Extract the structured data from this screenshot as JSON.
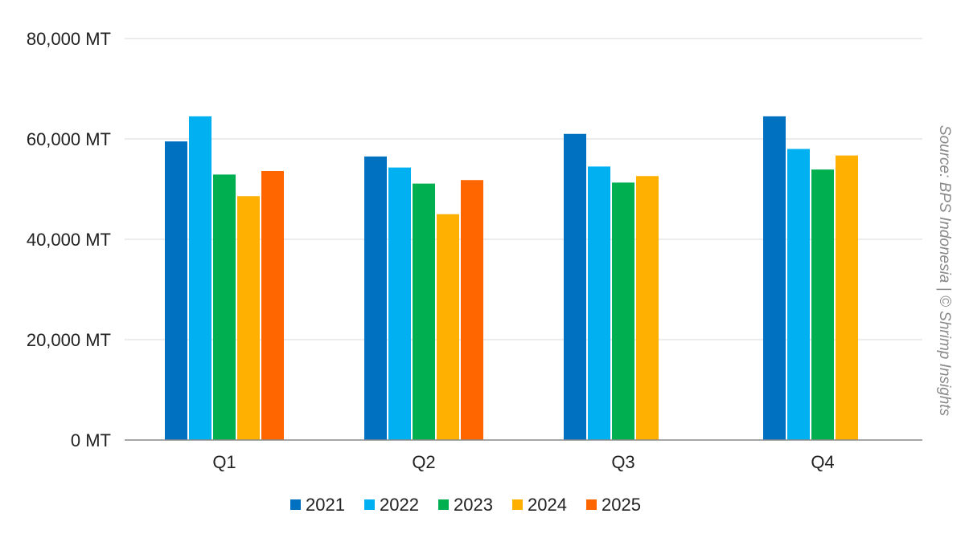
{
  "chart_data": {
    "type": "bar",
    "categories": [
      "Q1",
      "Q2",
      "Q3",
      "Q4"
    ],
    "series": [
      {
        "name": "2021",
        "color": "#0070C0",
        "values": [
          59500,
          56500,
          61000,
          64500
        ]
      },
      {
        "name": "2022",
        "color": "#00B0F0",
        "values": [
          64500,
          54300,
          54500,
          58000
        ]
      },
      {
        "name": "2023",
        "color": "#00B050",
        "values": [
          52900,
          51100,
          51300,
          53900
        ]
      },
      {
        "name": "2024",
        "color": "#FFB000",
        "values": [
          48600,
          45000,
          52600,
          56700
        ]
      },
      {
        "name": "2025",
        "color": "#FF6600",
        "values": [
          53600,
          51800,
          null,
          null
        ]
      }
    ],
    "ylim": [
      0,
      80000
    ],
    "yticks": [
      {
        "value": 0,
        "label": "0 MT"
      },
      {
        "value": 20000,
        "label": "20,000 MT"
      },
      {
        "value": 40000,
        "label": "40,000 MT"
      },
      {
        "value": 60000,
        "label": "60,000 MT"
      },
      {
        "value": 80000,
        "label": "80,000 MT"
      }
    ],
    "grid": true,
    "legend_position": "bottom",
    "source_text": "Source: BPS Indonesia | © Shrimp Insights"
  }
}
